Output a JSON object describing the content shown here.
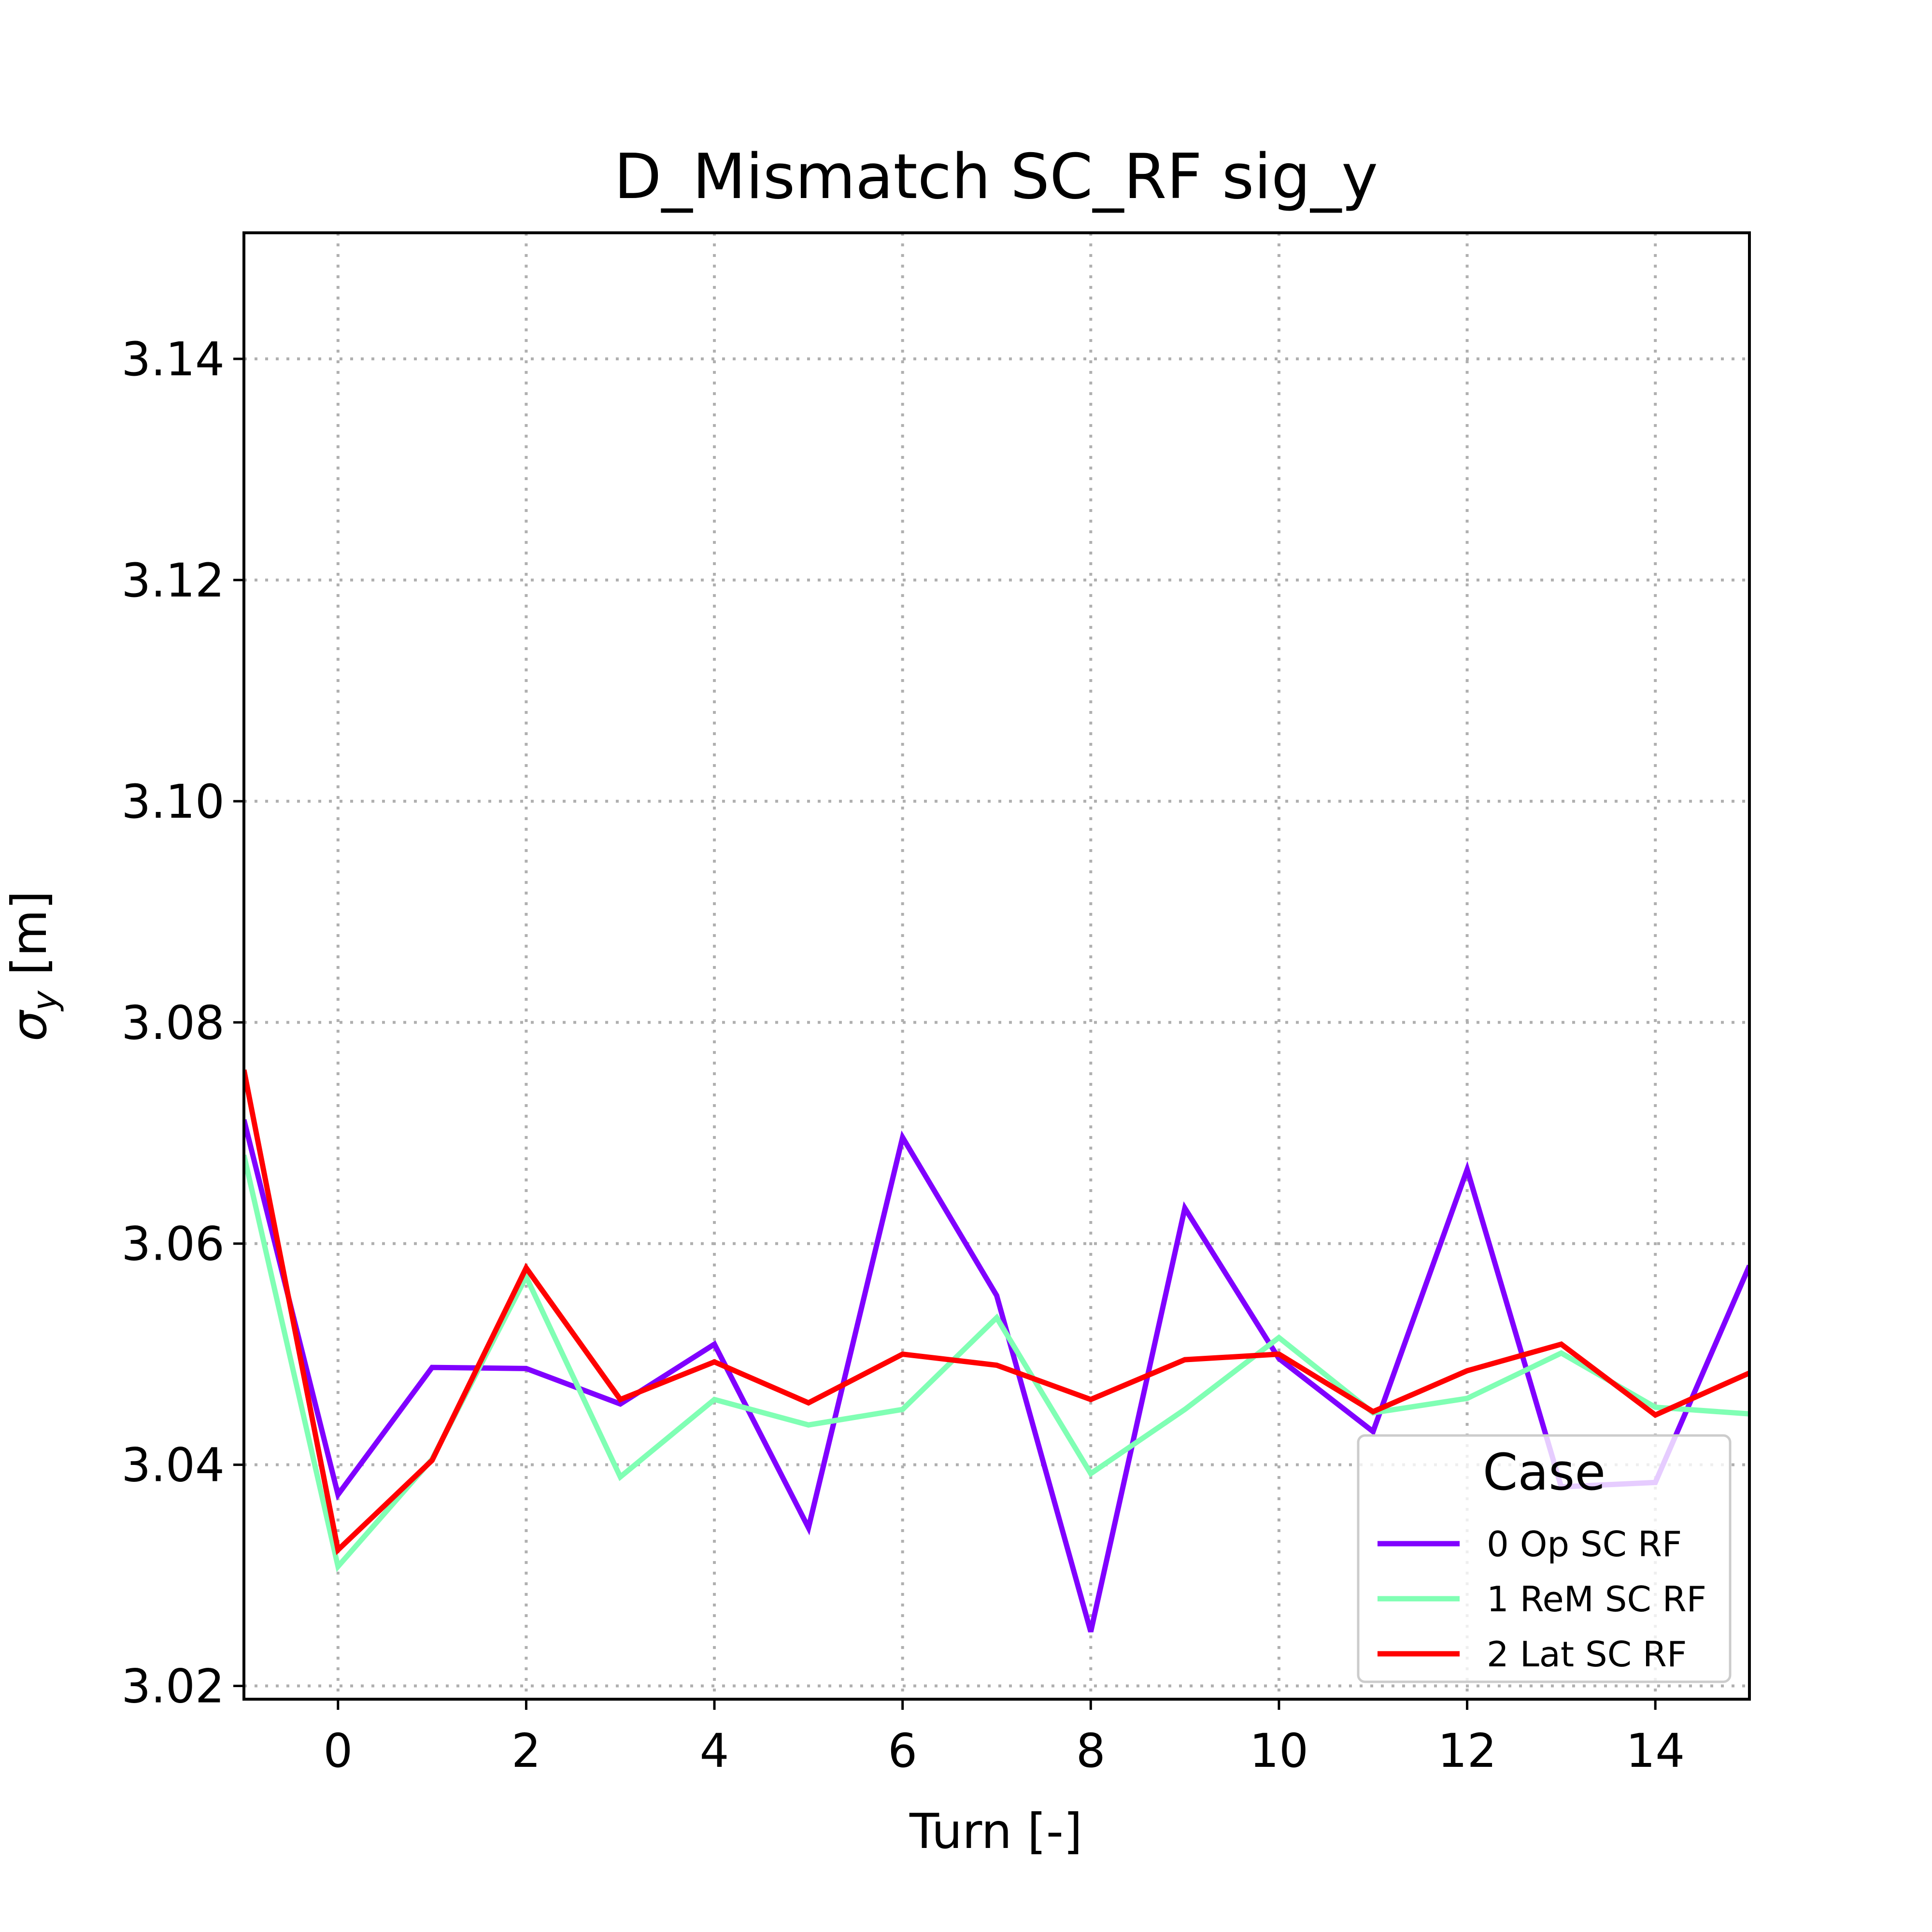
{
  "chart_data": {
    "type": "line",
    "title": "D_Mismatch SC_RF sig_y",
    "xlabel": "Turn [-]",
    "ylabel_main": "σ",
    "ylabel_sub": "y",
    "ylabel_unit": " [m]",
    "xlim": [
      -1,
      15
    ],
    "ylim": [
      3.0188,
      3.1514
    ],
    "xticks": [
      0,
      2,
      4,
      6,
      8,
      10,
      12,
      14
    ],
    "xtick_labels": [
      "0",
      "2",
      "4",
      "6",
      "8",
      "10",
      "12",
      "14"
    ],
    "yticks": [
      3.02,
      3.04,
      3.06,
      3.08,
      3.1,
      3.12,
      3.14
    ],
    "ytick_labels": [
      "3.02",
      "3.04",
      "3.06",
      "3.08",
      "3.10",
      "3.12",
      "3.14"
    ],
    "grid": true,
    "legend": {
      "title": "Case",
      "position": "lower-right"
    },
    "x": [
      -1,
      0,
      1,
      2,
      3,
      4,
      5,
      6,
      7,
      8,
      9,
      10,
      11,
      12,
      13,
      14,
      15
    ],
    "series": [
      {
        "name": "0 Op SC RF",
        "color": "#8000ff",
        "values": [
          3.0712,
          3.0373,
          3.0488,
          3.0487,
          3.0455,
          3.0509,
          3.0343,
          3.0696,
          3.0553,
          3.0249,
          3.0632,
          3.0496,
          3.043,
          3.0667,
          3.038,
          3.0384,
          3.058
        ]
      },
      {
        "name": "1 ReM SC RF",
        "color": "#80ffb4",
        "values": [
          3.068,
          3.0308,
          3.0405,
          3.057,
          3.0389,
          3.0459,
          3.0436,
          3.045,
          3.0533,
          3.0392,
          3.045,
          3.0515,
          3.0447,
          3.046,
          3.0501,
          3.0452,
          3.0446
        ]
      },
      {
        "name": "2 Lat SC RF",
        "color": "#ff0000",
        "values": [
          3.0757,
          3.0323,
          3.0404,
          3.0578,
          3.0459,
          3.0493,
          3.0456,
          3.05,
          3.049,
          3.0459,
          3.0495,
          3.05,
          3.0448,
          3.0485,
          3.0509,
          3.0445,
          3.0483
        ]
      }
    ]
  }
}
